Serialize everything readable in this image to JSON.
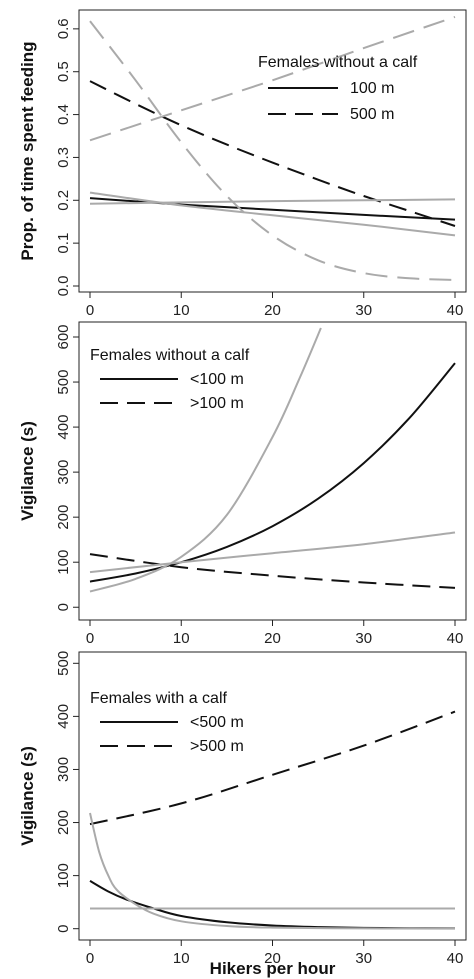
{
  "chart_data": [
    {
      "type": "line",
      "ylabel": "Prop. of time spent feeding",
      "xlabel": "",
      "xlim": [
        0,
        40
      ],
      "ylim": [
        0,
        0.63
      ],
      "xticks": [
        "0",
        "10",
        "20",
        "30",
        "40"
      ],
      "yticks": [
        "0.0",
        "0.1",
        "0.2",
        "0.3",
        "0.4",
        "0.5",
        "0.6"
      ],
      "legend": {
        "title": "Females without a calf",
        "entries": [
          {
            "label": "100 m",
            "style": "solid"
          },
          {
            "label": "500 m",
            "style": "dashed"
          }
        ]
      },
      "series": [
        {
          "style": "solid",
          "color": "#111111",
          "x": [
            0,
            10,
            20,
            30,
            40
          ],
          "y": [
            0.205,
            0.19,
            0.178,
            0.166,
            0.155
          ]
        },
        {
          "style": "dashed",
          "color": "#111111",
          "x": [
            0,
            5,
            10,
            15,
            20,
            25,
            30,
            35,
            40
          ],
          "y": [
            0.478,
            0.425,
            0.375,
            0.33,
            0.288,
            0.248,
            0.21,
            0.175,
            0.14
          ]
        },
        {
          "style": "solid",
          "color": "#aaaaaa",
          "x": [
            0,
            10,
            20,
            30,
            40
          ],
          "y": [
            0.218,
            0.188,
            0.165,
            0.143,
            0.118
          ]
        },
        {
          "style": "solid",
          "color": "#aaaaaa",
          "x": [
            0,
            10,
            20,
            30,
            40
          ],
          "y": [
            0.192,
            0.195,
            0.198,
            0.2,
            0.202
          ]
        },
        {
          "style": "dashed",
          "color": "#aaaaaa",
          "x": [
            0,
            10,
            20,
            30,
            40
          ],
          "y": [
            0.34,
            0.41,
            0.48,
            0.555,
            0.628
          ]
        },
        {
          "style": "dashed",
          "color": "#aaaaaa",
          "x": [
            0,
            5,
            10,
            15,
            20,
            25,
            30,
            35,
            40
          ],
          "y": [
            0.618,
            0.48,
            0.335,
            0.21,
            0.118,
            0.06,
            0.03,
            0.018,
            0.014
          ]
        }
      ]
    },
    {
      "type": "line",
      "ylabel": "Vigilance (s)",
      "xlabel": "",
      "xlim": [
        0,
        40
      ],
      "ylim": [
        -15,
        620
      ],
      "xticks": [
        "0",
        "10",
        "20",
        "30",
        "40"
      ],
      "yticks": [
        "0",
        "100",
        "200",
        "300",
        "400",
        "500",
        "600"
      ],
      "legend": {
        "title": "Females without a calf",
        "entries": [
          {
            "label": "<100 m",
            "style": "solid"
          },
          {
            "label": ">100 m",
            "style": "dashed"
          }
        ]
      },
      "series": [
        {
          "style": "solid",
          "color": "#111111",
          "x": [
            0,
            5,
            10,
            15,
            20,
            25,
            30,
            35,
            40
          ],
          "y": [
            57,
            75,
            100,
            134,
            180,
            241,
            320,
            420,
            542
          ]
        },
        {
          "style": "dashed",
          "color": "#111111",
          "x": [
            0,
            10,
            20,
            30,
            40
          ],
          "y": [
            118,
            89,
            70,
            55,
            43
          ]
        },
        {
          "style": "solid",
          "color": "#aaaaaa",
          "x": [
            0,
            5,
            10,
            15,
            20,
            23,
            25.3
          ],
          "y": [
            35,
            63,
            112,
            205,
            378,
            510,
            620
          ]
        },
        {
          "style": "solid",
          "color": "#aaaaaa",
          "x": [
            0,
            10,
            20,
            30,
            40
          ],
          "y": [
            78,
            100,
            120,
            140,
            166
          ]
        }
      ]
    },
    {
      "type": "line",
      "ylabel": "Vigilance (s)",
      "xlabel": "Hikers per hour",
      "xlim": [
        0,
        40
      ],
      "ylim": [
        -10,
        510
      ],
      "xticks": [
        "0",
        "10",
        "20",
        "30",
        "40"
      ],
      "yticks": [
        "0",
        "100",
        "200",
        "300",
        "400",
        "500"
      ],
      "legend": {
        "title": "Females with a calf",
        "entries": [
          {
            "label": "<500 m",
            "style": "solid"
          },
          {
            "label": ">500 m",
            "style": "dashed"
          }
        ]
      },
      "series": [
        {
          "style": "solid",
          "color": "#111111",
          "x": [
            0,
            2,
            4,
            7,
            10,
            15,
            20,
            25,
            30,
            35,
            40
          ],
          "y": [
            90,
            70,
            55,
            38,
            24,
            12,
            6,
            3,
            1.5,
            1,
            0.5
          ]
        },
        {
          "style": "dashed",
          "color": "#111111",
          "x": [
            0,
            10,
            20,
            30,
            40
          ],
          "y": [
            197,
            236,
            290,
            345,
            409
          ]
        },
        {
          "style": "solid",
          "color": "#aaaaaa",
          "x": [
            0,
            1,
            2,
            3,
            5,
            7,
            10,
            15,
            20,
            30,
            40
          ],
          "y": [
            218,
            145,
            100,
            72,
            46,
            28,
            14,
            5,
            2,
            0.5,
            0.2
          ]
        },
        {
          "style": "solid",
          "color": "#aaaaaa",
          "x": [
            0,
            40
          ],
          "y": [
            38,
            38
          ]
        }
      ]
    }
  ]
}
